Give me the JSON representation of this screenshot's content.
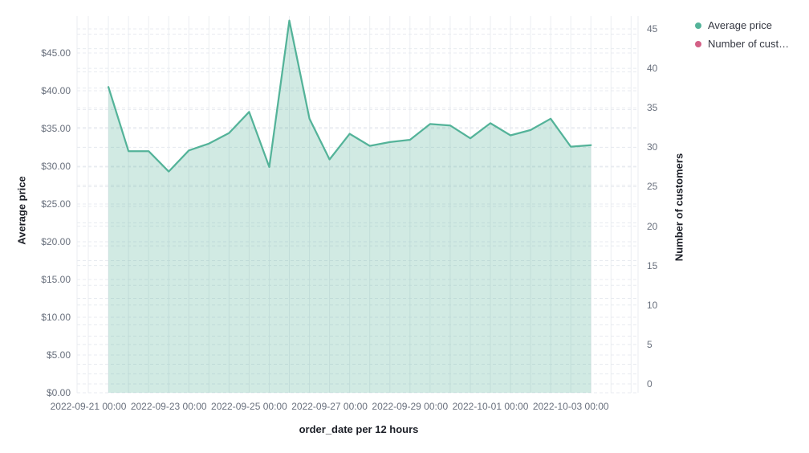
{
  "legend": {
    "items": [
      {
        "label": "Average price",
        "color": "#54B399"
      },
      {
        "label": "Number of cust…",
        "color": "#D36086"
      }
    ]
  },
  "axes": {
    "left": {
      "title": "Average price",
      "tick_labels": [
        "$0.00",
        "$5.00",
        "$10.00",
        "$15.00",
        "$20.00",
        "$25.00",
        "$30.00",
        "$35.00",
        "$40.00",
        "$45.00"
      ],
      "tick_values": [
        0,
        5,
        10,
        15,
        20,
        25,
        30,
        35,
        40,
        45
      ]
    },
    "right": {
      "title": "Number of customers",
      "tick_labels": [
        "0",
        "5",
        "10",
        "15",
        "20",
        "25",
        "30",
        "35",
        "40",
        "45"
      ],
      "tick_values": [
        0,
        5,
        10,
        15,
        20,
        25,
        30,
        35,
        40,
        45
      ]
    },
    "x": {
      "title": "order_date per 12 hours",
      "tick_labels": [
        "2022-09-21 00:00",
        "2022-09-23 00:00",
        "2022-09-25 00:00",
        "2022-09-27 00:00",
        "2022-09-29 00:00",
        "2022-10-01 00:00",
        "2022-10-03 00:00"
      ]
    }
  },
  "chart_data": {
    "type": "area",
    "title": "",
    "xlabel": "order_date per 12 hours",
    "ylabel_left": "Average price",
    "ylabel_right": "Number of customers",
    "x_interval": "12 hours",
    "x": [
      "2022-09-21 12:00",
      "2022-09-22 00:00",
      "2022-09-22 12:00",
      "2022-09-23 00:00",
      "2022-09-23 12:00",
      "2022-09-24 00:00",
      "2022-09-24 12:00",
      "2022-09-25 00:00",
      "2022-09-25 12:00",
      "2022-09-26 00:00",
      "2022-09-26 12:00",
      "2022-09-27 00:00",
      "2022-09-27 12:00",
      "2022-09-28 00:00",
      "2022-09-28 12:00",
      "2022-09-29 00:00",
      "2022-09-29 12:00",
      "2022-09-30 00:00",
      "2022-09-30 12:00",
      "2022-10-01 00:00",
      "2022-10-01 12:00",
      "2022-10-02 00:00",
      "2022-10-02 12:00",
      "2022-10-03 00:00",
      "2022-10-03 12:00"
    ],
    "series": [
      {
        "name": "Average price",
        "axis": "left",
        "color": "#54B399",
        "fill_opacity": 0.27,
        "values": [
          40.5,
          32.0,
          32.0,
          29.3,
          32.1,
          33.0,
          34.4,
          37.2,
          29.9,
          49.3,
          36.3,
          30.9,
          34.3,
          32.7,
          33.2,
          33.5,
          35.6,
          35.4,
          33.7,
          35.7,
          34.1,
          34.8,
          36.3,
          32.6,
          32.8
        ]
      },
      {
        "name": "Number of customers",
        "axis": "right",
        "color": "#D36086",
        "values": []
      }
    ],
    "ylim_left": [
      0,
      47.5
    ],
    "ylim_right": [
      0,
      46
    ],
    "grid": true,
    "legend_position": "top-right"
  },
  "colors": {
    "grid_vertical": "#ebeef2",
    "grid_horizontal": "#e8ebf0",
    "tick_label": "#69707d",
    "axis_title": "#1c1f27"
  }
}
